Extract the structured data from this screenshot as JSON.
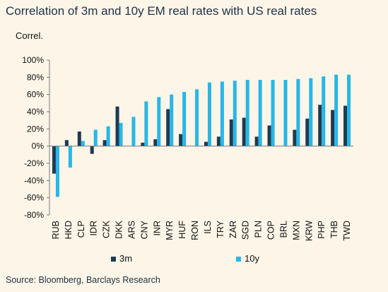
{
  "title": "Correlation of 3m and 10y EM real rates with US real rates",
  "source": "Source: Bloomberg, Barclays Research",
  "colors": {
    "s3m": "#1f3a52",
    "s10y": "#27b7e6",
    "axis": "#7a7a7a",
    "background": "#fcf5e8"
  },
  "chart_data": {
    "type": "bar",
    "ylabel": "Correl.",
    "ylim": [
      -0.8,
      1.0
    ],
    "yticks": [
      1.0,
      0.8,
      0.6,
      0.4,
      0.2,
      0.0,
      -0.2,
      -0.4,
      -0.6,
      -0.8
    ],
    "ytick_labels": [
      "100%",
      "80%",
      "60%",
      "40%",
      "20%",
      "0%",
      "-20%",
      "-40%",
      "-60%",
      "-80%"
    ],
    "categories": [
      "RUB",
      "HKD",
      "CLP",
      "IDR",
      "CZK",
      "DKK",
      "ARS",
      "CNY",
      "INR",
      "MYR",
      "HUF",
      "RON",
      "ILS",
      "TRY",
      "ZAR",
      "SGD",
      "PLN",
      "COP",
      "BRL",
      "MXN",
      "KRW",
      "PHP",
      "THB",
      "TWD"
    ],
    "series": [
      {
        "name": "3m",
        "color": "#1f3a52",
        "values": [
          -0.32,
          0.07,
          0.17,
          -0.09,
          0.07,
          0.46,
          null,
          0.04,
          0.08,
          0.43,
          0.14,
          null,
          0.05,
          0.11,
          0.31,
          0.33,
          0.11,
          0.24,
          null,
          0.19,
          0.32,
          0.48,
          0.42,
          0.47
        ]
      },
      {
        "name": "10y",
        "color": "#27b7e6",
        "values": [
          -0.59,
          -0.25,
          0.06,
          0.19,
          0.23,
          0.27,
          0.34,
          0.52,
          0.57,
          0.6,
          0.63,
          0.66,
          0.74,
          0.75,
          0.76,
          0.77,
          0.77,
          0.77,
          0.77,
          0.78,
          0.79,
          0.81,
          0.83,
          0.83
        ]
      }
    ],
    "legend": {
      "position": "bottom",
      "items": [
        "3m",
        "10y"
      ]
    },
    "grid": false
  }
}
